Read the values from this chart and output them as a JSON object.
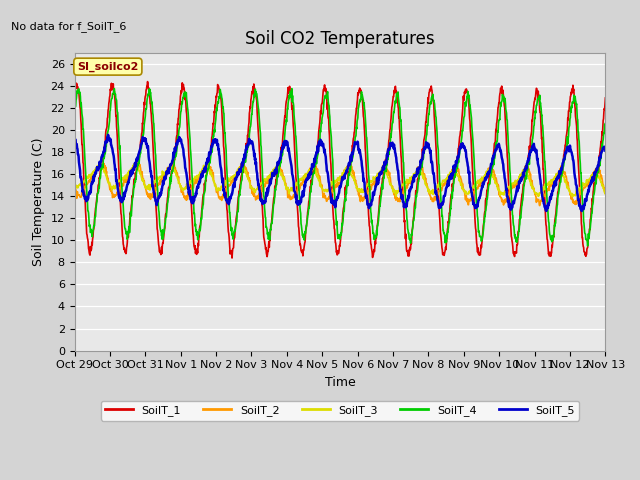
{
  "title": "Soil CO2 Temperatures",
  "xlabel": "Time",
  "ylabel": "Soil Temperature (C)",
  "no_data_text": "No data for f_SoilT_6",
  "annotation_text": "SI_soilco2",
  "ylim": [
    0,
    27
  ],
  "yticks": [
    0,
    2,
    4,
    6,
    8,
    10,
    12,
    14,
    16,
    18,
    20,
    22,
    24,
    26
  ],
  "bg_color": "#d4d4d4",
  "plot_bg_color": "#e8e8e8",
  "legend_labels": [
    "SoilT_1",
    "SoilT_2",
    "SoilT_3",
    "SoilT_4",
    "SoilT_5"
  ],
  "legend_colors": [
    "#dd0000",
    "#ff9900",
    "#dddd00",
    "#00cc00",
    "#0000cc"
  ],
  "line_widths": [
    1.2,
    1.2,
    1.2,
    1.2,
    1.8
  ],
  "n_days": 15,
  "xtick_labels": [
    "Oct 29",
    "Oct 30",
    "Oct 31",
    "Nov 1",
    "Nov 2",
    "Nov 3",
    "Nov 4",
    "Nov 5",
    "Nov 6",
    "Nov 7",
    "Nov 8",
    "Nov 9",
    "Nov 10",
    "Nov 11",
    "Nov 12",
    "Nov 13"
  ],
  "title_fontsize": 12,
  "axis_label_fontsize": 9,
  "tick_fontsize": 8,
  "figsize": [
    6.4,
    4.8
  ],
  "dpi": 100
}
